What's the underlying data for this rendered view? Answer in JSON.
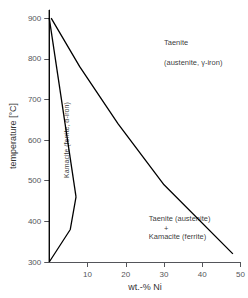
{
  "chart_data": {
    "type": "line",
    "xlabel": "wt.-% Ni",
    "ylabel": "temperature [°C]",
    "xlim": [
      0,
      50
    ],
    "ylim": [
      300,
      920
    ],
    "xticks": [
      10,
      20,
      30,
      40,
      50
    ],
    "yticks": [
      300,
      400,
      500,
      600,
      700,
      800,
      900
    ],
    "grid": false,
    "series": [
      {
        "x": [
          0,
          7.0
        ],
        "values": [
          900,
          460
        ],
        "color": "#000000"
      },
      {
        "x": [
          7.0,
          5.5,
          0
        ],
        "values": [
          460,
          380,
          300
        ],
        "color": "#000000"
      },
      {
        "x": [
          0.5,
          8,
          18,
          30,
          48
        ],
        "values": [
          900,
          780,
          640,
          490,
          320
        ],
        "color": "#000000"
      },
      {
        "x": [
          0,
          0
        ],
        "values": [
          300,
          920
        ],
        "color": "#000000"
      }
    ],
    "annotations": [
      {
        "text": "Taenite",
        "x": 30,
        "y": 840
      },
      {
        "text": "(austenite, γ-iron)",
        "x": 30,
        "y": 790
      },
      {
        "text": "Kamacite (ferrite, α-iron)",
        "x": 4.5,
        "y": 600,
        "orientation": "vertical"
      },
      {
        "text": "Taenite (austenite)",
        "x": 26,
        "y": 408
      },
      {
        "text": "+",
        "x": 30,
        "y": 382
      },
      {
        "text": "Kamacite (ferrite)",
        "x": 26,
        "y": 362
      }
    ]
  }
}
